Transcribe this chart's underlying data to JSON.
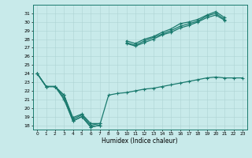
{
  "xlabel": "Humidex (Indice chaleur)",
  "x": [
    0,
    1,
    2,
    3,
    4,
    5,
    6,
    7,
    8,
    9,
    10,
    11,
    12,
    13,
    14,
    15,
    16,
    17,
    18,
    19,
    20,
    21,
    22,
    23
  ],
  "line1": [
    24,
    22.5,
    22.5,
    21.2,
    18.5,
    19.0,
    17.8,
    18.0,
    null,
    null,
    27.8,
    27.5,
    28.0,
    28.3,
    28.8,
    29.2,
    29.8,
    30.0,
    30.3,
    30.8,
    31.2,
    30.5,
    null,
    null
  ],
  "line2": [
    24,
    22.5,
    22.5,
    21.5,
    18.7,
    19.2,
    18.0,
    18.2,
    null,
    null,
    27.6,
    27.3,
    27.8,
    28.2,
    28.6,
    29.0,
    29.5,
    29.8,
    30.1,
    30.7,
    31.0,
    30.3,
    null,
    null
  ],
  "line3": [
    24,
    22.5,
    22.5,
    21.5,
    18.9,
    19.3,
    18.2,
    18.2,
    null,
    null,
    27.5,
    27.2,
    27.6,
    28.0,
    28.5,
    28.8,
    29.3,
    29.6,
    30.0,
    30.5,
    30.8,
    30.2,
    null,
    null
  ],
  "line_low": [
    24,
    22.5,
    22.5,
    21.0,
    18.5,
    19.0,
    17.8,
    18.0,
    21.5,
    21.7,
    21.8,
    22.0,
    22.2,
    22.3,
    22.5,
    22.7,
    22.9,
    23.1,
    23.3,
    23.5,
    23.6,
    23.5,
    23.5,
    23.5
  ],
  "ylim": [
    17.5,
    32.0
  ],
  "yticks": [
    18,
    19,
    20,
    21,
    22,
    23,
    24,
    25,
    26,
    27,
    28,
    29,
    30,
    31
  ],
  "xticks": [
    0,
    1,
    2,
    3,
    4,
    5,
    6,
    7,
    8,
    9,
    10,
    11,
    12,
    13,
    14,
    15,
    16,
    17,
    18,
    19,
    20,
    21,
    22,
    23
  ],
  "color": "#1a7a6e",
  "bg_color": "#c8eaea",
  "grid_color": "#aed4d4"
}
